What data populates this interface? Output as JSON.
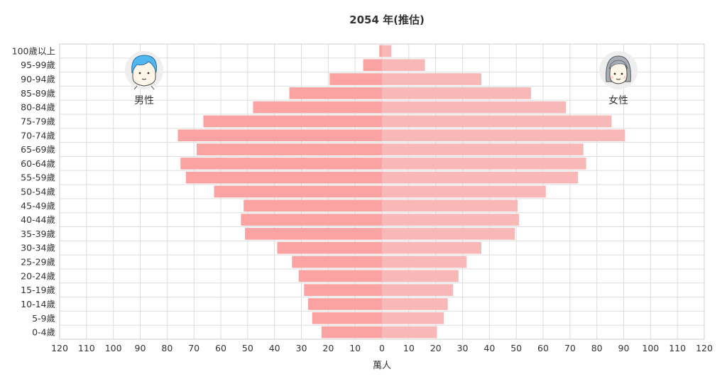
{
  "chart_data": {
    "type": "bar",
    "orientation": "horizontal-population-pyramid",
    "title": "2054 年(推估)",
    "xlabel": "萬人",
    "x_ticks": [
      "120",
      "110",
      "100",
      "90",
      "80",
      "70",
      "60",
      "50",
      "40",
      "30",
      "20",
      "10",
      "0",
      "10",
      "20",
      "30",
      "40",
      "50",
      "60",
      "70",
      "80",
      "90",
      "100",
      "110",
      "120"
    ],
    "xlim": [
      -120,
      120
    ],
    "grid": true,
    "categories": [
      "100歲以上",
      "95-99歲",
      "90-94歲",
      "85-89歲",
      "80-84歲",
      "75-79歲",
      "70-74歲",
      "65-69歲",
      "60-64歲",
      "55-59歲",
      "50-54歲",
      "45-49歲",
      "40-44歲",
      "35-39歲",
      "30-34歲",
      "25-29歲",
      "20-24歲",
      "15-19歲",
      "10-14歲",
      "5-9歲",
      "0-4歲"
    ],
    "series": [
      {
        "name": "男性",
        "color": "#fba3a3",
        "values": [
          1,
          7,
          19.5,
          34.5,
          48,
          66.5,
          76,
          69,
          75,
          73,
          62.5,
          51.5,
          52.5,
          51,
          39,
          33.5,
          31,
          29,
          27.5,
          26,
          22.5
        ]
      },
      {
        "name": "女性",
        "color": "#f9b8b8",
        "values": [
          3.5,
          16,
          37,
          55.5,
          68.5,
          85.5,
          90.5,
          75,
          76,
          73,
          61,
          50.5,
          51,
          49.5,
          37,
          31.5,
          28.5,
          26.5,
          24.5,
          23,
          20.5
        ]
      }
    ],
    "icons": {
      "male": "male-avatar-icon",
      "female": "female-avatar-icon"
    }
  }
}
